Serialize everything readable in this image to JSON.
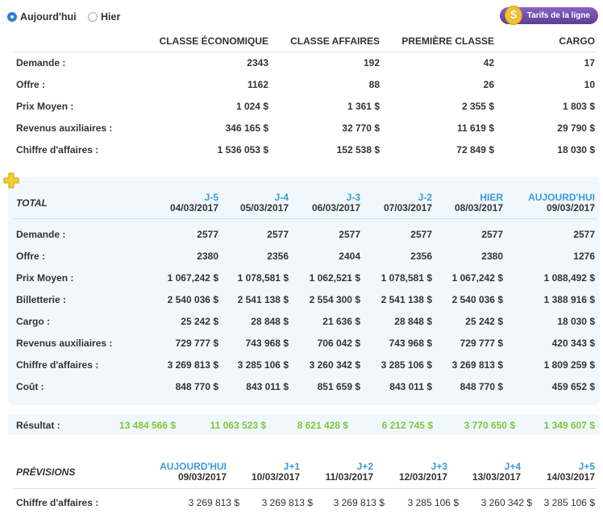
{
  "radios": [
    {
      "label": "Aujourd'hui",
      "checked": true
    },
    {
      "label": "Hier",
      "checked": false
    }
  ],
  "tarifs_button": {
    "label": "Tarifs de la ligne",
    "icon": "dollar-coin-icon"
  },
  "summary": {
    "columns": [
      "CLASSE ÉCONOMIQUE",
      "CLASSE AFFAIRES",
      "PREMIÈRE CLASSE",
      "CARGO"
    ],
    "rows": [
      {
        "label": "Demande :",
        "values": [
          "2343",
          "192",
          "42",
          "17"
        ]
      },
      {
        "label": "Offre :",
        "values": [
          "1162",
          "88",
          "26",
          "10"
        ]
      },
      {
        "label": "Prix Moyen :",
        "values": [
          "1 024 $",
          "1 361 $",
          "2 355 $",
          "1 803 $"
        ]
      },
      {
        "label": "Revenus auxiliaires :",
        "values": [
          "346 165 $",
          "32 770 $",
          "11 619 $",
          "29 790 $"
        ]
      },
      {
        "label": "Chiffre d'affaires :",
        "values": [
          "1 536 053 $",
          "152 538 $",
          "72 849 $",
          "18 030 $"
        ]
      }
    ]
  },
  "history": {
    "title": "TOTAL",
    "columns": [
      {
        "day": "J-5",
        "date": "04/03/2017"
      },
      {
        "day": "J-4",
        "date": "05/03/2017"
      },
      {
        "day": "J-3",
        "date": "06/03/2017"
      },
      {
        "day": "J-2",
        "date": "07/03/2017"
      },
      {
        "day": "HIER",
        "date": "08/03/2017"
      },
      {
        "day": "AUJOURD'HUI",
        "date": "09/03/2017"
      }
    ],
    "rows": [
      {
        "label": "Demande :",
        "values": [
          "2577",
          "2577",
          "2577",
          "2577",
          "2577",
          "2577"
        ]
      },
      {
        "label": "Offre :",
        "values": [
          "2380",
          "2356",
          "2404",
          "2356",
          "2380",
          "1276"
        ]
      },
      {
        "label": "Prix Moyen :",
        "values": [
          "1 067,242 $",
          "1 078,581 $",
          "1 062,521 $",
          "1 078,581 $",
          "1 067,242 $",
          "1 088,492 $"
        ]
      },
      {
        "label": "Billetterie :",
        "values": [
          "2 540 036 $",
          "2 541 138 $",
          "2 554 300 $",
          "2 541 138 $",
          "2 540 036 $",
          "1 388 916 $"
        ]
      },
      {
        "label": "Cargo :",
        "values": [
          "25 242 $",
          "28 848 $",
          "21 636 $",
          "28 848 $",
          "25 242 $",
          "18 030 $"
        ]
      },
      {
        "label": "Revenus auxiliaires :",
        "values": [
          "729 777 $",
          "743 968 $",
          "706 042 $",
          "743 968 $",
          "729 777 $",
          "420 343 $"
        ]
      },
      {
        "label": "Chiffre d'affaires :",
        "values": [
          "3 269 813 $",
          "3 285 106 $",
          "3 260 342 $",
          "3 285 106 $",
          "3 269 813 $",
          "1 809 259 $"
        ]
      },
      {
        "label": "Coût :",
        "values": [
          "848 770 $",
          "843 011 $",
          "851 659 $",
          "843 011 $",
          "848 770 $",
          "459 652 $"
        ]
      }
    ]
  },
  "result": {
    "label": "Résultat :",
    "values": [
      "13 484 566 $",
      "11 063 523 $",
      "8 621 428 $",
      "6 212 745 $",
      "3 770 650 $",
      "1 349 607 $"
    ]
  },
  "forecast": {
    "title": "PRÉVISIONS",
    "columns": [
      {
        "day": "AUJOURD'HUI",
        "date": "09/03/2017"
      },
      {
        "day": "J+1",
        "date": "10/03/2017"
      },
      {
        "day": "J+2",
        "date": "11/03/2017"
      },
      {
        "day": "J+3",
        "date": "12/03/2017"
      },
      {
        "day": "J+4",
        "date": "13/03/2017"
      },
      {
        "day": "J+5",
        "date": "14/03/2017"
      }
    ],
    "rows": [
      {
        "label": "Chiffre d'affaires :",
        "values": [
          "3 269 813 $",
          "3 269 813 $",
          "3 269 813 $",
          "3 285 106 $",
          "3 260 342 $",
          "3 285 106 $"
        ]
      }
    ]
  },
  "colors": {
    "accent_blue": "#3a9ad9",
    "result_green": "#7cc83a",
    "panel_bg": "#f0f8fd",
    "button_purple": "#6b4aa6"
  }
}
